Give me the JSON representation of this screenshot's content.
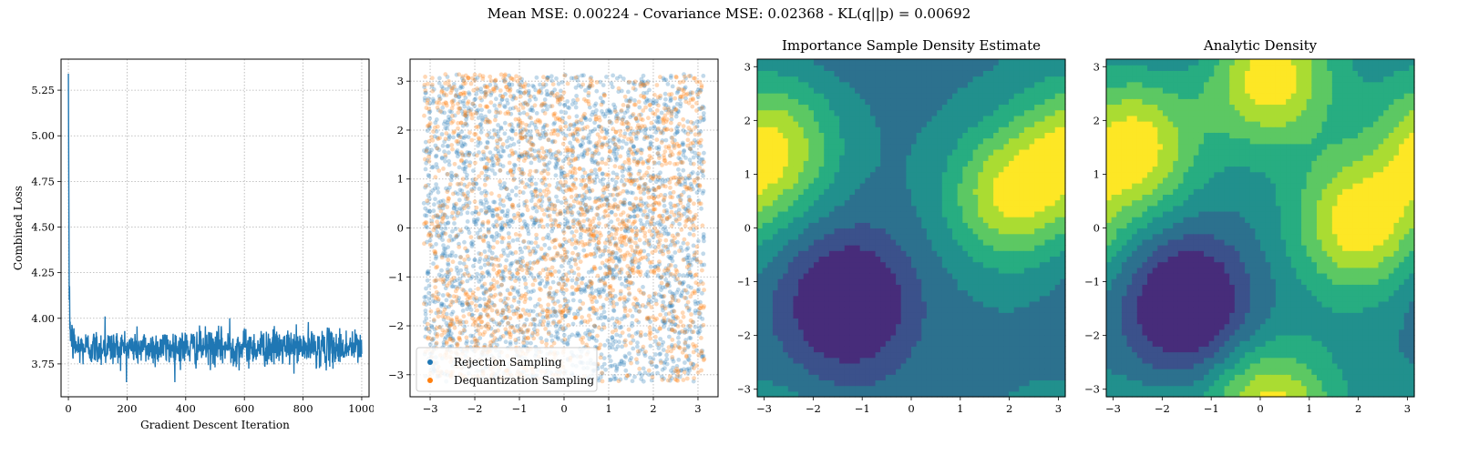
{
  "suptitle": "Mean MSE: 0.00224 - Covariance MSE: 0.02368 - KL(q||p) = 0.00692",
  "chart_data": [
    {
      "type": "line",
      "title": "",
      "xlabel": "Gradient Descent Iteration",
      "ylabel": "Combined Loss",
      "xlim": [
        -25,
        1025
      ],
      "ylim": [
        3.57,
        5.42
      ],
      "xticks": [
        "0",
        "200",
        "400",
        "600",
        "800",
        "1000"
      ],
      "yticks": [
        "3.75",
        "4.00",
        "4.25",
        "4.50",
        "4.75",
        "5.00",
        "5.25"
      ],
      "grid": true,
      "color": "#1f77b4",
      "summary_points": {
        "x": [
          0,
          3,
          6,
          10,
          30,
          125,
          550,
          1000
        ],
        "y": [
          5.34,
          4.1,
          3.9,
          3.95,
          3.85,
          4.01,
          4.0,
          3.8
        ]
      },
      "steady_state": {
        "mean": 3.84,
        "std": 0.05
      }
    },
    {
      "type": "scatter",
      "title": "",
      "xlim": [
        -3.45,
        3.45
      ],
      "ylim": [
        -3.45,
        3.45
      ],
      "xticks": [
        "−3",
        "−2",
        "−1",
        "0",
        "1",
        "2",
        "3"
      ],
      "yticks": [
        "−3",
        "−2",
        "−1",
        "0",
        "1",
        "2",
        "3"
      ],
      "grid": true,
      "legend_position": "lower-left",
      "series": [
        {
          "name": "Rejection Sampling",
          "color": "#1f77b4"
        },
        {
          "name": "Dequantization Sampling",
          "color": "#ff7f0e"
        }
      ],
      "sample_range": [
        -3.14,
        3.14
      ]
    },
    {
      "type": "heatmap",
      "title": "Importance Sample Density Estimate",
      "xlim": [
        -3.14,
        3.14
      ],
      "ylim": [
        -3.14,
        3.14
      ],
      "xticks": [
        "−3",
        "−2",
        "−1",
        "0",
        "1",
        "2",
        "3"
      ],
      "yticks": [
        "−3",
        "−2",
        "−1",
        "0",
        "1",
        "2",
        "3"
      ],
      "colormap": "viridis",
      "peaks": [
        {
          "x": 2.0,
          "y": 0.6,
          "level": "high"
        },
        {
          "x": -2.8,
          "y": 1.5,
          "level": "high"
        },
        {
          "x": -1.3,
          "y": -1.4,
          "level": "low"
        }
      ]
    },
    {
      "type": "heatmap",
      "title": "Analytic Density",
      "xlim": [
        -3.14,
        3.14
      ],
      "ylim": [
        -3.14,
        3.14
      ],
      "xticks": [
        "−3",
        "−2",
        "−1",
        "0",
        "1",
        "2",
        "3"
      ],
      "yticks": [
        "−3",
        "−2",
        "−1",
        "0",
        "1",
        "2",
        "3"
      ],
      "colormap": "viridis",
      "peaks": [
        {
          "x": -2.6,
          "y": 1.5,
          "level": "high"
        },
        {
          "x": 0.2,
          "y": 2.8,
          "level": "high"
        },
        {
          "x": 2.0,
          "y": 0.1,
          "level": "high"
        },
        {
          "x": -1.5,
          "y": -1.4,
          "level": "low"
        }
      ]
    }
  ]
}
